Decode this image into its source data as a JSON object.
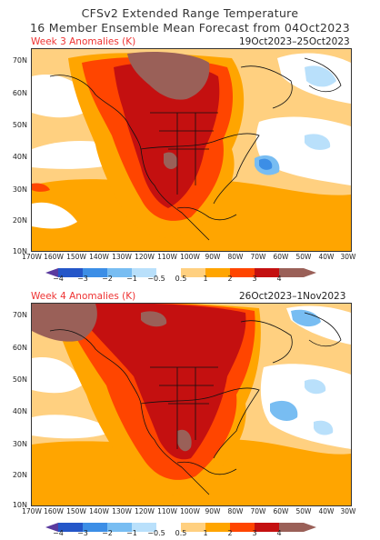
{
  "title": {
    "line1": "CFSv2 Extended Range Temperature",
    "line2": "16 Member Ensemble Mean Forecast from 04Oct2023"
  },
  "panels": [
    {
      "label": "Week 3 Anomalies (K)",
      "dates": "19Oct2023–25Oct2023"
    },
    {
      "label": "Week 4 Anomalies (K)",
      "dates": "26Oct2023–1Nov2023"
    }
  ],
  "lat_labels": [
    "70N",
    "60N",
    "50N",
    "40N",
    "30N",
    "20N",
    "10N"
  ],
  "lon_labels": [
    "170W",
    "160W",
    "150W",
    "140W",
    "130W",
    "120W",
    "110W",
    "100W",
    "90W",
    "80W",
    "70W",
    "60W",
    "50W",
    "40W",
    "30W"
  ],
  "colorbar": {
    "ticks": [
      "−4",
      "−3",
      "−2",
      "−1",
      "−0.5",
      "0.5",
      "1",
      "2",
      "3",
      "4"
    ],
    "colors": [
      "#5a3a9e",
      "#2456c8",
      "#3c8ee6",
      "#78bdf2",
      "#b9e0fb",
      "#ffffff",
      "#ffd080",
      "#ffa500",
      "#ff4500",
      "#c41010",
      "#9a6058"
    ]
  },
  "chart_data": {
    "type": "heatmap",
    "units": "K",
    "lat_range": [
      10,
      75
    ],
    "lon_range": [
      -170,
      -30
    ],
    "maps": [
      {
        "name": "Week 3 Anomalies (K)",
        "dates": "19Oct2023–25Oct2023"
      },
      {
        "name": "Week 4 Anomalies (K)",
        "dates": "26Oct2023–1Nov2023"
      }
    ]
  }
}
